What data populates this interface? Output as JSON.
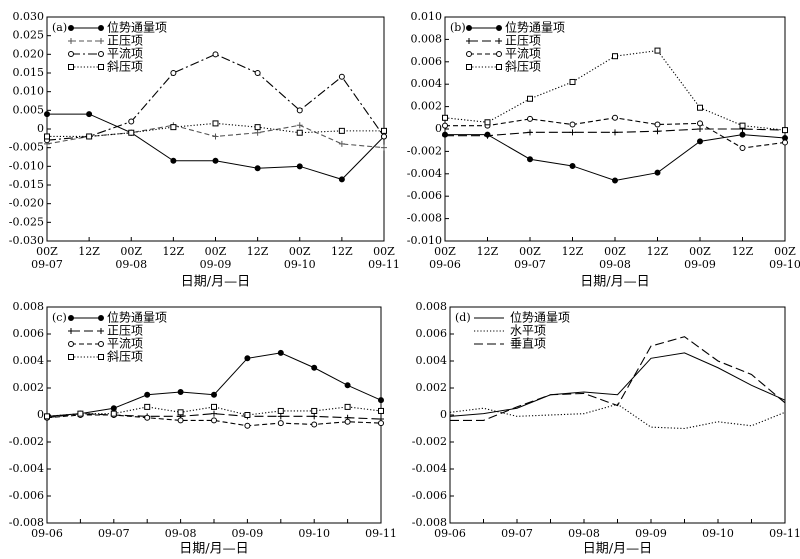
{
  "chart_data": [
    {
      "type": "line",
      "title": "(a)",
      "xlabel": "日期/月—日",
      "categories": [
        "00Z",
        "12Z",
        "00Z",
        "12Z",
        "00Z",
        "12Z",
        "00Z",
        "12Z",
        "00Z"
      ],
      "dates": [
        "09-07",
        null,
        "09-08",
        null,
        "09-09",
        null,
        "09-10",
        null,
        "09-11"
      ],
      "ylim": [
        -0.03,
        0.03
      ],
      "yticks": [
        {
          "value": 0.03,
          "label": "0.030"
        },
        0.025,
        {
          "value": 0.02,
          "label": "0.020"
        },
        0.015,
        {
          "value": 0.01,
          "label": "0.010"
        },
        0.005,
        0,
        -0.005,
        {
          "value": -0.01,
          "label": "-0.010"
        },
        -0.015,
        {
          "value": -0.02,
          "label": "-0.020"
        },
        -0.025,
        {
          "value": -0.03,
          "label": "-0.030"
        }
      ],
      "legend": "upper left",
      "series": [
        {
          "name": "位势通量项",
          "color": "#000000",
          "style": "solid",
          "marker": "dot",
          "values": [
            0.004,
            0.004,
            -0.001,
            -0.0085,
            -0.0085,
            -0.0105,
            -0.01,
            -0.0135,
            -0.002
          ]
        },
        {
          "name": "正压项",
          "color": "#555555",
          "style": "dash",
          "marker": "plus",
          "values": [
            -0.004,
            -0.002,
            -0.001,
            0.001,
            -0.002,
            -0.001,
            0.001,
            -0.004,
            -0.005
          ]
        },
        {
          "name": "平流项",
          "color": "#000000",
          "style": "dashdot",
          "marker": "circle",
          "values": [
            -0.003,
            -0.002,
            0.002,
            0.015,
            0.02,
            0.015,
            0.005,
            0.014,
            -0.002
          ]
        },
        {
          "name": "斜压项",
          "color": "#000000",
          "style": "dotted",
          "marker": "square",
          "values": [
            -0.002,
            -0.002,
            -0.001,
            0.0005,
            0.0015,
            0.0005,
            -0.001,
            -0.0005,
            -0.0005
          ]
        }
      ]
    },
    {
      "type": "line",
      "title": "(b)",
      "xlabel": "日期/月—日",
      "categories": [
        "00Z",
        "12Z",
        "00Z",
        "12Z",
        "00Z",
        "12Z",
        "00Z",
        "12Z",
        "00Z"
      ],
      "dates": [
        "09-06",
        null,
        "09-07",
        null,
        "09-08",
        null,
        "09-09",
        null,
        "09-10"
      ],
      "ylim": [
        -0.01,
        0.01
      ],
      "yticks": [
        {
          "value": 0.01,
          "label": "0.010"
        },
        0.008,
        0.006,
        0.004,
        0.002,
        0,
        -0.002,
        -0.004,
        -0.006,
        -0.008,
        {
          "value": -0.01,
          "label": "-0.010"
        }
      ],
      "legend": "upper left",
      "series": [
        {
          "name": "位势通量项",
          "color": "#000000",
          "style": "solid",
          "marker": "dot",
          "values": [
            -0.0005,
            -0.0005,
            -0.0027,
            -0.0033,
            -0.0046,
            -0.0039,
            -0.0011,
            -0.0005,
            -0.0008
          ]
        },
        {
          "name": "正压项",
          "color": "#000000",
          "style": "longdash",
          "marker": "plus",
          "values": [
            -0.0006,
            -0.0006,
            -0.0003,
            -0.0003,
            -0.0003,
            -0.0002,
            0,
            0,
            -0.0001
          ]
        },
        {
          "name": "平流项",
          "color": "#000000",
          "style": "dash",
          "marker": "circle",
          "values": [
            0.0003,
            0.0003,
            0.0009,
            0.0004,
            0.001,
            0.0004,
            0.0005,
            -0.0017,
            -0.0012
          ]
        },
        {
          "name": "斜压项",
          "color": "#000000",
          "style": "dotted",
          "marker": "square",
          "values": [
            0.001,
            0.0006,
            0.0027,
            0.0042,
            0.0065,
            0.007,
            0.0019,
            0.0003,
            -0.0001
          ]
        }
      ]
    },
    {
      "type": "line",
      "title": "(c)",
      "xlabel": "日期/月—日",
      "categories": [
        "09-06",
        null,
        "09-07",
        null,
        "09-08",
        null,
        "09-09",
        null,
        "09-10",
        null,
        "09-11"
      ],
      "ylim": [
        -0.008,
        0.008
      ],
      "yticks": [
        0.008,
        0.006,
        0.004,
        0.002,
        0,
        -0.002,
        -0.004,
        -0.006,
        -0.008
      ],
      "legend": "upper left",
      "series": [
        {
          "name": "位势通量项",
          "color": "#000000",
          "style": "solid",
          "marker": "dot",
          "values": [
            -0.0001,
            0.0001,
            0.0005,
            0.0015,
            0.0017,
            0.0015,
            0.0042,
            0.0046,
            0.0035,
            0.0022,
            0.0011
          ]
        },
        {
          "name": "正压项",
          "color": "#000000",
          "style": "longdash",
          "marker": "plus",
          "values": [
            -0.0002,
            0.0001,
            0,
            -0.0001,
            -0.0001,
            0.0001,
            -0.0001,
            -0.0001,
            -0.0001,
            -0.0002,
            -0.0003
          ]
        },
        {
          "name": "平流项",
          "color": "#000000",
          "style": "dash",
          "marker": "circle",
          "values": [
            -0.0002,
            0,
            0,
            -0.0002,
            -0.0004,
            -0.0004,
            -0.0008,
            -0.0006,
            -0.0007,
            -0.0005,
            -0.0006
          ]
        },
        {
          "name": "斜压项",
          "color": "#000000",
          "style": "dotted",
          "marker": "square",
          "values": [
            -0.0001,
            0.0001,
            0.0001,
            0.0006,
            0.0002,
            0.0006,
            0,
            0.0003,
            0.0003,
            0.0006,
            0.0003
          ]
        }
      ]
    },
    {
      "type": "line",
      "title": "(d)",
      "xlabel": "日期/月—日",
      "categories": [
        "09-06",
        null,
        "09-07",
        null,
        "09-08",
        null,
        "09-09",
        null,
        "09-10",
        null,
        "09-11"
      ],
      "ylim": [
        -0.008,
        0.008
      ],
      "yticks": [
        0.008,
        0.006,
        0.004,
        0.002,
        0,
        -0.002,
        -0.004,
        -0.006,
        -0.008
      ],
      "legend": "upper left",
      "series": [
        {
          "name": "位势通量项",
          "color": "#000000",
          "style": "solid",
          "marker": "none",
          "values": [
            -0.0001,
            0.0001,
            0.0005,
            0.0015,
            0.0017,
            0.0015,
            0.0042,
            0.0046,
            0.0035,
            0.0022,
            0.0011
          ]
        },
        {
          "name": "水平项",
          "color": "#000000",
          "style": "dotted",
          "marker": "none",
          "values": [
            0.0002,
            0.0005,
            -0.0001,
            0,
            0.0001,
            0.0008,
            -0.0009,
            -0.001,
            -0.0005,
            -0.0008,
            0.0002
          ]
        },
        {
          "name": "垂直项",
          "color": "#000000",
          "style": "longdash",
          "marker": "none",
          "values": [
            -0.0004,
            -0.0004,
            0.0006,
            0.0015,
            0.0016,
            0.0007,
            0.0051,
            0.0058,
            0.004,
            0.003,
            0.0009
          ]
        }
      ]
    }
  ]
}
